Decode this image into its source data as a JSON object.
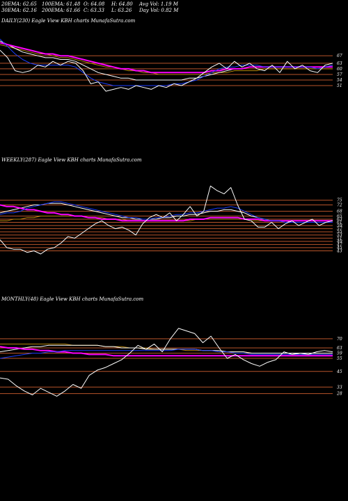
{
  "header": {
    "row1": [
      "20EMA: 62.65",
      "100EMA: 61.48",
      "O: 64.08",
      "H: 64.80",
      "Avg Vol: 1.19 M"
    ],
    "row2": [
      "30EMA: 62.16",
      "200EMA: 61.66",
      "C: 63.33",
      "L: 63.26",
      "Day Vol: 0.82 M"
    ]
  },
  "colors": {
    "background": "#000000",
    "price": "#ffffff",
    "ema_fast": "#1a3cff",
    "ema_mid": "#ff00ff",
    "ema_slow": "#ffffff",
    "ema_long": "#b8860b",
    "level": "#b8542a",
    "text": "#ffffff"
  },
  "chart_data": [
    {
      "type": "line",
      "title": "DAILY(230) Eagle  View  KBH charts MunafaSutra.com",
      "ylim": [
        26,
        82
      ],
      "levels": [
        67,
        63,
        60,
        57,
        54,
        51
      ],
      "level_labels": [
        "67",
        "63",
        "60",
        "57",
        "54",
        "51"
      ],
      "series": [
        {
          "key": "price",
          "values": [
            70,
            66,
            59,
            58,
            59,
            62,
            61,
            64,
            62,
            64,
            63,
            59,
            52,
            53,
            48,
            49,
            50,
            49,
            51,
            50,
            49,
            51,
            50,
            52,
            51,
            53,
            55,
            58,
            61,
            63,
            60,
            64,
            61,
            63,
            60,
            59,
            62,
            58,
            64,
            60,
            62,
            59,
            58,
            62,
            63
          ]
        },
        {
          "key": "ema_fast",
          "values": [
            76,
            72,
            68,
            65,
            63,
            62,
            62,
            62,
            62,
            62,
            61,
            58,
            55,
            53,
            52,
            51,
            51,
            51,
            51,
            51,
            51,
            51,
            51,
            52,
            52,
            53,
            54,
            56,
            58,
            60,
            61,
            61,
            62,
            62,
            62,
            61,
            61,
            61,
            61,
            61,
            61,
            61,
            60,
            61,
            62
          ]
        },
        {
          "key": "ema_mid",
          "values": [
            74,
            73,
            72,
            71,
            70,
            69,
            68,
            68,
            67,
            67,
            66,
            65,
            64,
            63,
            62,
            61,
            60,
            60,
            59,
            59,
            58,
            58,
            58,
            58,
            58,
            58,
            58,
            58,
            59,
            59,
            60,
            60,
            60,
            61,
            61,
            61,
            61,
            61,
            61,
            61,
            61,
            61,
            61,
            61,
            61
          ]
        },
        {
          "key": "ema_slow",
          "values": [
            75,
            73,
            71,
            69,
            68,
            67,
            66,
            66,
            65,
            65,
            64,
            62,
            60,
            58,
            57,
            56,
            55,
            55,
            54,
            54,
            54,
            54,
            54,
            54,
            54,
            55,
            55,
            56,
            57,
            58,
            59,
            60,
            60,
            61,
            61,
            61,
            61,
            61,
            61,
            61,
            61,
            61,
            61,
            61,
            62
          ]
        },
        {
          "key": "ema_long",
          "values": [
            73,
            72,
            71,
            70,
            69,
            68,
            68,
            67,
            66,
            66,
            65,
            64,
            63,
            62,
            61,
            61,
            60,
            59,
            59,
            58,
            58,
            57,
            57,
            57,
            57,
            57,
            57,
            57,
            58,
            58,
            58,
            59,
            59,
            59,
            59,
            60,
            60,
            60,
            60,
            60,
            60,
            60,
            60,
            60,
            60
          ]
        }
      ]
    },
    {
      "type": "line",
      "title": "WEEKLY(287) Eagle  View  KBH charts MunafaSutra.com",
      "ylim": [
        30,
        96
      ],
      "levels": [
        75,
        72,
        68,
        65,
        63,
        61,
        59,
        57,
        55,
        53,
        51,
        49,
        47,
        45,
        43
      ],
      "level_labels": [
        "75",
        "72",
        "68",
        "65",
        "63",
        "61",
        "59",
        "57",
        "55",
        "53",
        "51",
        "49",
        "47",
        "45",
        "43"
      ],
      "series": [
        {
          "key": "price",
          "values": [
            50,
            45,
            44,
            44,
            42,
            43,
            41,
            44,
            45,
            48,
            52,
            51,
            54,
            57,
            60,
            62,
            59,
            57,
            58,
            56,
            53,
            60,
            64,
            66,
            64,
            67,
            62,
            66,
            71,
            65,
            68,
            84,
            81,
            79,
            83,
            72,
            63,
            62,
            58,
            58,
            61,
            57,
            60,
            62,
            59,
            61,
            63,
            59,
            61,
            62
          ]
        },
        {
          "key": "ema_fast",
          "values": [
            66,
            67,
            67,
            68,
            70,
            71,
            72,
            73,
            74,
            74,
            73,
            72,
            71,
            70,
            69,
            68,
            67,
            66,
            65,
            64,
            64,
            63,
            63,
            64,
            64,
            65,
            66,
            66,
            67,
            67,
            68,
            69,
            70,
            70,
            71,
            70,
            68,
            66,
            64,
            63,
            62,
            62,
            61,
            61,
            61,
            61,
            61,
            61,
            61,
            61
          ]
        },
        {
          "key": "ema_mid",
          "values": [
            72,
            71,
            71,
            70,
            69,
            69,
            68,
            67,
            67,
            66,
            66,
            65,
            65,
            64,
            64,
            63,
            63,
            63,
            62,
            62,
            62,
            62,
            62,
            62,
            62,
            62,
            62,
            62,
            63,
            63,
            63,
            64,
            64,
            64,
            64,
            64,
            63,
            63,
            63,
            62,
            62,
            62,
            62,
            62,
            62,
            62,
            62,
            62,
            62,
            62
          ]
        },
        {
          "key": "ema_slow",
          "values": [
            67,
            68,
            69,
            70,
            71,
            72,
            72,
            73,
            73,
            73,
            72,
            71,
            70,
            69,
            68,
            67,
            66,
            65,
            64,
            64,
            63,
            63,
            63,
            63,
            64,
            64,
            65,
            65,
            66,
            66,
            67,
            68,
            68,
            69,
            69,
            68,
            67,
            65,
            64,
            63,
            62,
            62,
            62,
            61,
            61,
            61,
            61,
            61,
            61,
            61
          ]
        },
        {
          "key": "ema_long",
          "values": [
            62,
            62,
            63,
            63,
            64,
            64,
            65,
            65,
            65,
            65,
            65,
            65,
            65,
            64,
            64,
            64,
            63,
            63,
            63,
            62,
            62,
            62,
            62,
            62,
            62,
            62,
            62,
            62,
            62,
            63,
            63,
            63,
            63,
            63,
            63,
            63,
            63,
            62,
            62,
            62,
            62,
            62,
            61,
            61,
            61,
            61,
            61,
            61,
            61,
            61
          ]
        }
      ]
    },
    {
      "type": "line",
      "title": "MONTHLY(48) Eagle  View  KBH charts MunafaSutra.com",
      "ylim": [
        15,
        95
      ],
      "levels": [
        70,
        63,
        59,
        55,
        45,
        33,
        28
      ],
      "level_labels": [
        "70",
        "63",
        "59",
        "55",
        "45",
        "33",
        "28"
      ],
      "series": [
        {
          "key": "price",
          "values": [
            40,
            39,
            34,
            30,
            27,
            32,
            29,
            26,
            30,
            35,
            32,
            42,
            46,
            48,
            51,
            54,
            59,
            65,
            62,
            66,
            60,
            70,
            78,
            76,
            74,
            67,
            72,
            63,
            55,
            58,
            54,
            51,
            49,
            52,
            54,
            60,
            58,
            59,
            58,
            60,
            61,
            60
          ]
        },
        {
          "key": "ema_fast",
          "values": [
            55,
            56,
            57,
            58,
            59,
            59,
            60,
            60,
            61,
            61,
            61,
            61,
            61,
            61,
            61,
            61,
            61,
            61,
            61,
            61,
            61,
            61,
            62,
            62,
            62,
            61,
            61,
            60,
            60,
            59,
            59,
            58,
            58,
            58,
            58,
            58,
            58,
            58,
            58,
            58,
            58,
            58
          ]
        },
        {
          "key": "ema_mid",
          "values": [
            64,
            63,
            63,
            62,
            62,
            61,
            61,
            60,
            60,
            59,
            59,
            58,
            58,
            58,
            57,
            57,
            57,
            57,
            57,
            57,
            57,
            57,
            57,
            57,
            57,
            57,
            57,
            57,
            57,
            57,
            57,
            57,
            57,
            57,
            57,
            57,
            57,
            57,
            57,
            57,
            57,
            57
          ]
        },
        {
          "key": "ema_slow",
          "values": [
            60,
            61,
            62,
            63,
            64,
            64,
            65,
            65,
            65,
            65,
            65,
            65,
            65,
            64,
            64,
            63,
            63,
            63,
            62,
            62,
            62,
            62,
            62,
            62,
            62,
            61,
            61,
            61,
            60,
            60,
            60,
            59,
            59,
            59,
            59,
            59,
            59,
            59,
            59,
            59,
            59,
            59
          ]
        },
        {
          "key": "ema_long",
          "values": [
            66,
            66,
            66,
            66,
            66,
            66,
            66,
            66,
            66,
            65,
            65,
            65,
            65,
            64,
            64,
            64,
            63,
            63,
            63,
            62,
            62,
            62,
            62,
            61,
            61,
            61,
            61,
            60,
            60,
            60,
            60,
            59,
            59,
            59,
            59,
            59,
            59,
            58,
            58,
            58,
            58,
            58
          ]
        }
      ]
    }
  ]
}
